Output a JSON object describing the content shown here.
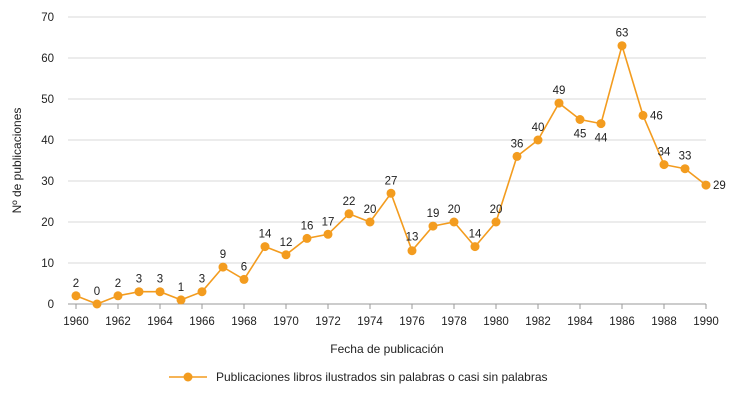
{
  "chart_data": {
    "type": "line",
    "title": "",
    "xlabel": "Fecha de publicación",
    "ylabel": "Nº de publicaciones",
    "xlim": [
      1960,
      1990
    ],
    "ylim": [
      0,
      70
    ],
    "x_ticks": [
      "1960",
      "1962",
      "1964",
      "1966",
      "1968",
      "1970",
      "1972",
      "1974",
      "1976",
      "1978",
      "1980",
      "1982",
      "1984",
      "1986",
      "1988",
      "1990"
    ],
    "y_ticks": [
      "0",
      "10",
      "20",
      "30",
      "40",
      "50",
      "60",
      "70"
    ],
    "grid": "horizontal",
    "legend_position": "bottom",
    "color": "#F39C1F",
    "series": [
      {
        "name": "Publicaciones libros ilustrados sin palabras o casi sin palabras",
        "x": [
          1960,
          1961,
          1962,
          1963,
          1964,
          1965,
          1966,
          1967,
          1968,
          1969,
          1970,
          1971,
          1972,
          1973,
          1974,
          1975,
          1976,
          1977,
          1978,
          1979,
          1980,
          1981,
          1982,
          1983,
          1984,
          1985,
          1986,
          1987,
          1988,
          1989,
          1990
        ],
        "values": [
          2,
          0,
          2,
          3,
          3,
          1,
          3,
          9,
          6,
          14,
          12,
          16,
          17,
          22,
          20,
          27,
          13,
          19,
          20,
          14,
          20,
          36,
          40,
          49,
          45,
          44,
          63,
          46,
          34,
          33,
          29
        ]
      }
    ]
  }
}
